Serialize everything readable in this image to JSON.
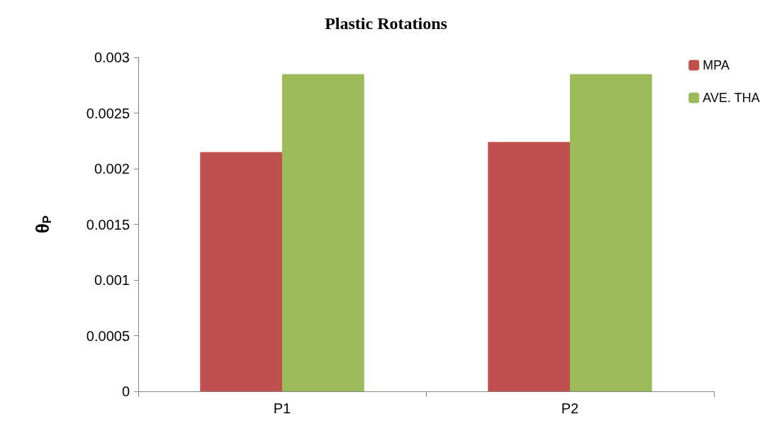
{
  "chart_data": {
    "type": "bar",
    "title": "Plastic Rotations",
    "ylabel": "θ$_{P}$",
    "categories": [
      "P1",
      "P2"
    ],
    "series": [
      {
        "name": "MPA",
        "color": "#c0504d",
        "values": [
          0.00215,
          0.00224
        ]
      },
      {
        "name": "AVE. THA",
        "color": "#9bbb59",
        "values": [
          0.00285,
          0.00285
        ]
      }
    ],
    "ylim": [
      0,
      0.003
    ],
    "yticks": [
      0,
      0.0005,
      0.001,
      0.0015,
      0.002,
      0.0025,
      0.003
    ],
    "grid": false,
    "legend": "top right"
  }
}
